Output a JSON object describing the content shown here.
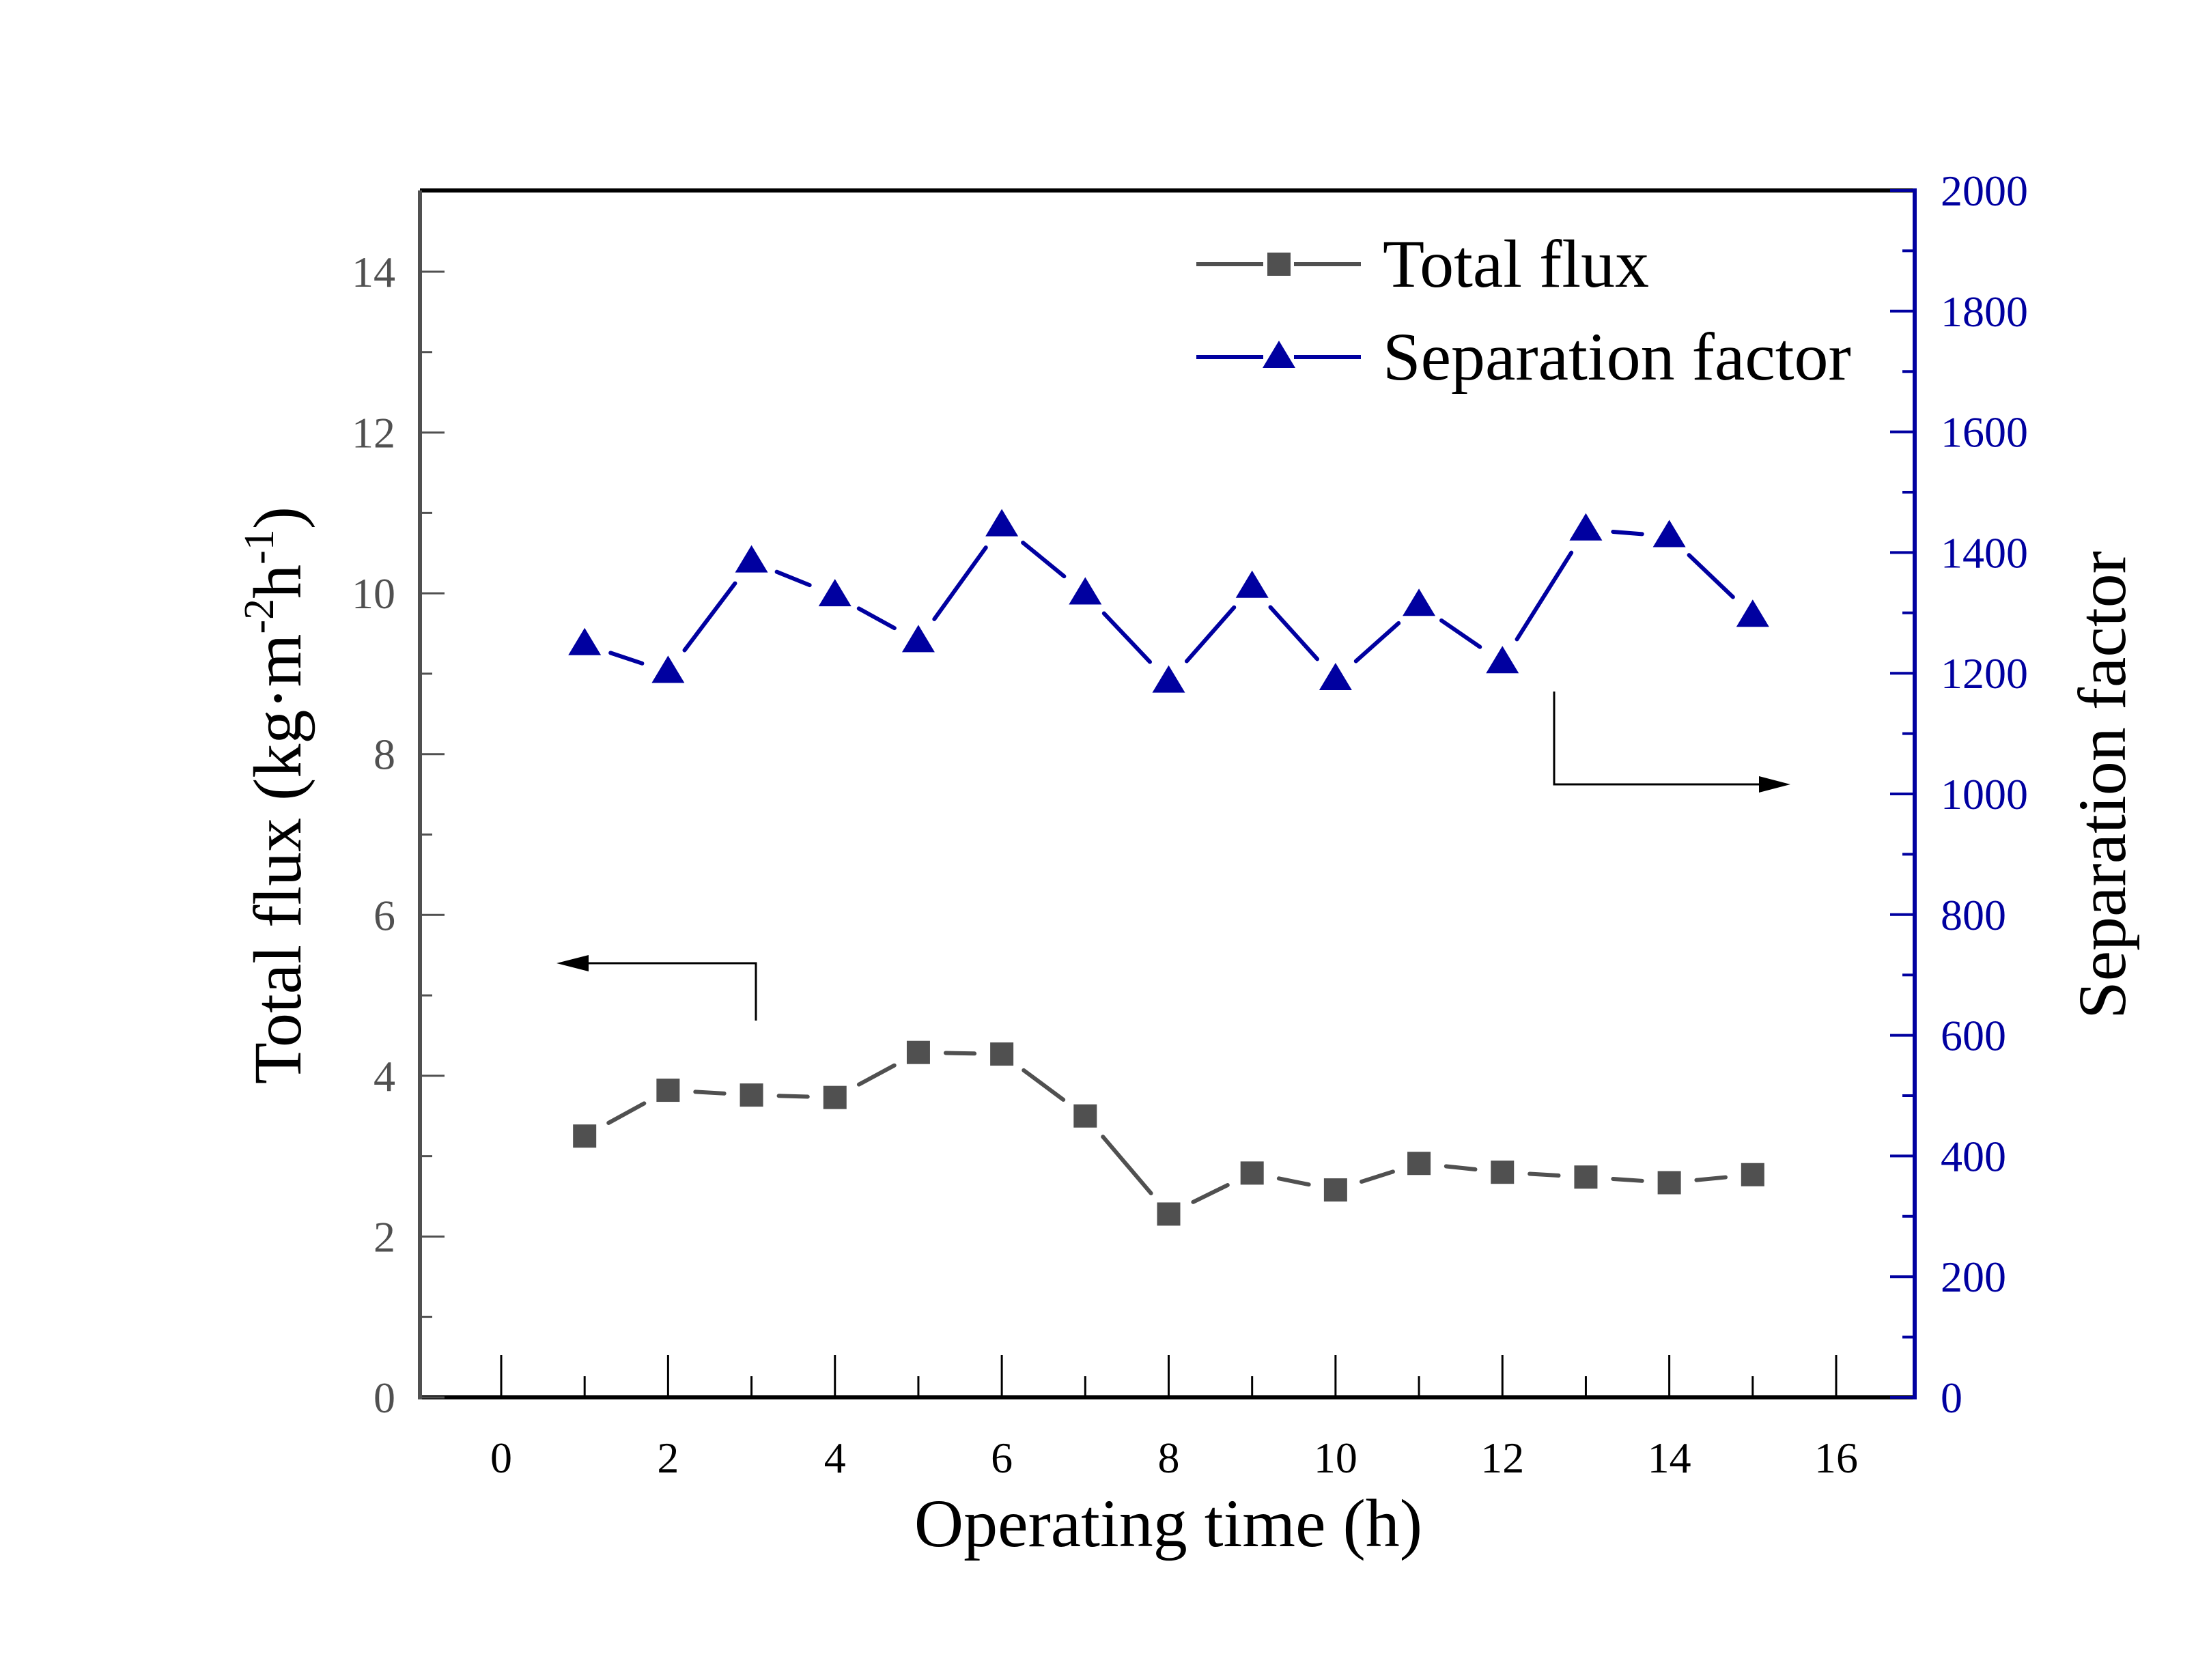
{
  "chart_data": {
    "type": "line",
    "title": "",
    "xlabel": "Operating time (h)",
    "ylabel_left": {
      "main": "Total flux (kg·m",
      "sup1": "-2",
      "mid": "h",
      "sup2": "-1",
      "end": ")"
    },
    "ylabel_right": "Separation factor",
    "xlim": [
      -1,
      17
    ],
    "ylim_left": [
      0,
      15
    ],
    "ylim_right": [
      0,
      2000
    ],
    "x_ticks": [
      0,
      2,
      4,
      6,
      8,
      10,
      12,
      14,
      16
    ],
    "x_tick_labels": [
      "0",
      "2",
      "4",
      "6",
      "8",
      "10",
      "12",
      "14",
      "16"
    ],
    "y_left_ticks": [
      0,
      2,
      4,
      6,
      8,
      10,
      12,
      14
    ],
    "y_left_tick_labels": [
      "0",
      "2",
      "4",
      "6",
      "8",
      "10",
      "12",
      "14"
    ],
    "y_right_ticks": [
      0,
      200,
      400,
      600,
      800,
      1000,
      1200,
      1400,
      1600,
      1800,
      2000
    ],
    "y_right_tick_labels": [
      "0",
      "200",
      "400",
      "600",
      "800",
      "1000",
      "1200",
      "1400",
      "1600",
      "1800",
      "2000"
    ],
    "grid": false,
    "legend_position": "top-right",
    "x": [
      1,
      2,
      3,
      4,
      5,
      6,
      7,
      8,
      9,
      10,
      11,
      12,
      13,
      14,
      15
    ],
    "series": [
      {
        "name": "Total flux",
        "axis": "left",
        "marker": "square",
        "color": "#505050",
        "values": [
          3.25,
          3.82,
          3.76,
          3.73,
          4.29,
          4.27,
          3.5,
          2.28,
          2.79,
          2.58,
          2.91,
          2.8,
          2.74,
          2.67,
          2.77
        ]
      },
      {
        "name": "Separation factor",
        "axis": "right",
        "marker": "triangle",
        "color": "#0000A0",
        "values": [
          1248,
          1202,
          1385,
          1329,
          1253,
          1445,
          1332,
          1186,
          1343,
          1190,
          1313,
          1218,
          1438,
          1427,
          1295
        ]
      }
    ],
    "annotations": [
      {
        "type": "arrow",
        "direction": "left",
        "points_to": "left-axis",
        "series": "Total flux"
      },
      {
        "type": "arrow",
        "direction": "right",
        "points_to": "right-axis",
        "series": "Separation factor"
      }
    ],
    "colors": {
      "left_axis": "#505050",
      "right_axis": "#0000A0",
      "frame": "#000000"
    }
  }
}
